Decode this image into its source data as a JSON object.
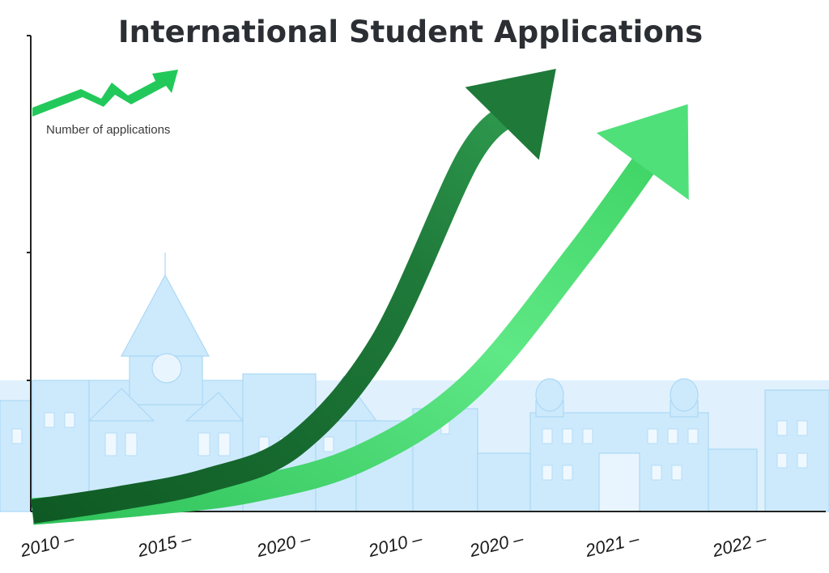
{
  "chart_data": {
    "type": "line",
    "title": "International Student Applications",
    "ylabel": "Number of applications",
    "xlabel": "",
    "categories": [
      "2010",
      "2015",
      "2020",
      "2010",
      "2020",
      "2021",
      "2022"
    ],
    "legend": {
      "placement": "top-left",
      "icon": "trend-arrow-icon"
    },
    "y_ticks": [
      "",
      "",
      ""
    ],
    "series": [
      {
        "values": [
          0,
          3,
          7,
          15,
          38,
          80,
          100
        ]
      },
      {
        "values": [
          0,
          2,
          5,
          12,
          28,
          58,
          92
        ]
      }
    ],
    "ylim": [
      0,
      100
    ],
    "grid": false,
    "colors": {
      "dark_series": "#1f7a3a",
      "light_series": "#4fe07a",
      "legend_arrow": "#22c95a",
      "axis": "#222222",
      "title": "#2b2f33",
      "skyline": "#b9e1fb"
    }
  },
  "background": {
    "illustration": "university-campus-skyline"
  }
}
